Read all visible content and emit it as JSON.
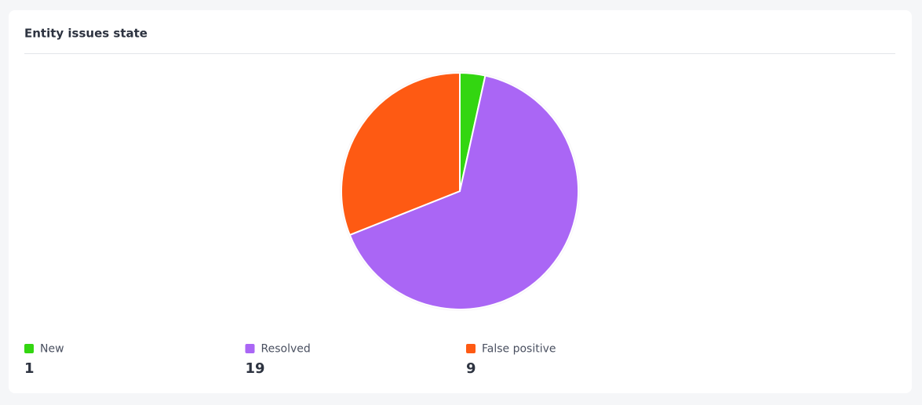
{
  "chart_data": {
    "type": "pie",
    "title": "Entity issues state",
    "categories": [
      "New",
      "Resolved",
      "False positive"
    ],
    "values": [
      1,
      19,
      9
    ],
    "colors": [
      "#33d611",
      "#aa66f5",
      "#fe5a13"
    ]
  }
}
